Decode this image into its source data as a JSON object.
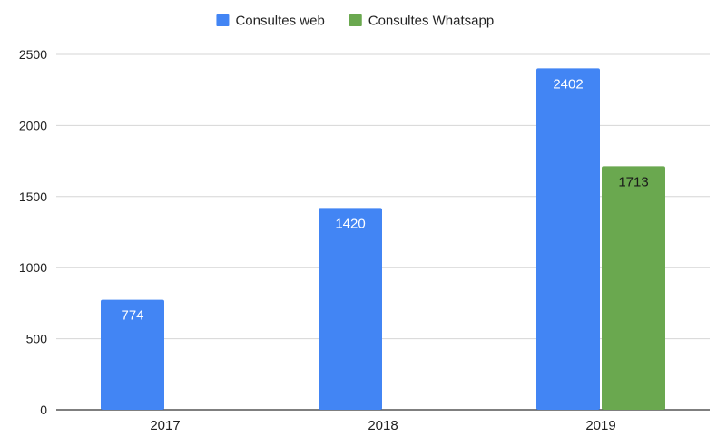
{
  "chart_data": {
    "type": "bar",
    "categories": [
      "2017",
      "2018",
      "2019"
    ],
    "series": [
      {
        "name": "Consultes web",
        "color": "#4285f4",
        "label_color": "#ffffff",
        "values": [
          774,
          1420,
          2402
        ]
      },
      {
        "name": "Consultes Whatsapp",
        "color": "#6aa84f",
        "label_color": "#1a1a1a",
        "values": [
          null,
          null,
          1713
        ]
      }
    ],
    "ylim": [
      0,
      2500
    ],
    "yticks": [
      0,
      500,
      1000,
      1500,
      2000,
      2500
    ],
    "grid": true,
    "legend_position": "top-center",
    "data_labels": true
  }
}
